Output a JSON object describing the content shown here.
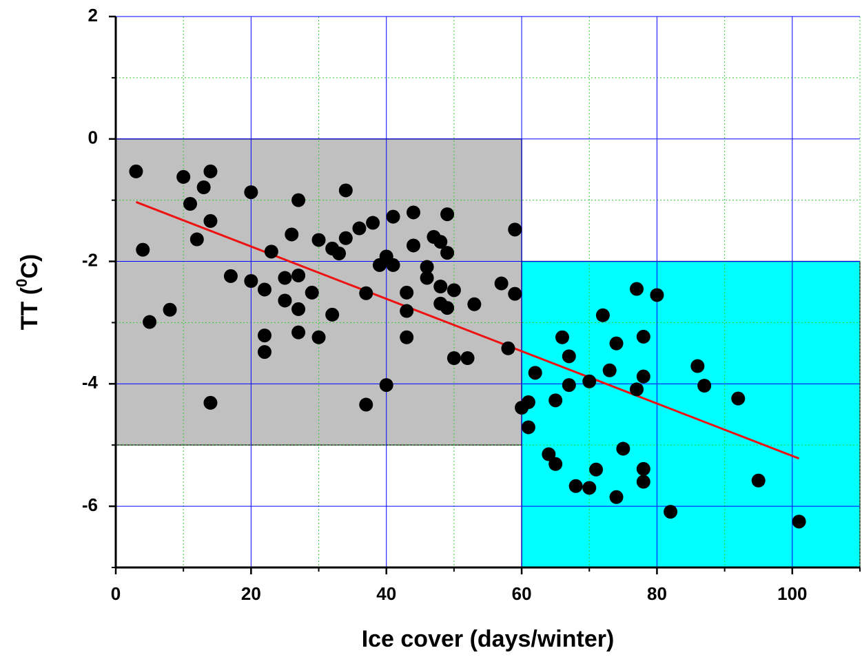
{
  "chart_data": {
    "type": "scatter",
    "xlabel": "Ice cover (days/winter)",
    "ylabel": [
      "TT (",
      "0",
      "C)"
    ],
    "xlim": [
      0,
      110
    ],
    "ylim": [
      -7,
      2
    ],
    "xticks": [
      0,
      20,
      40,
      60,
      80,
      100
    ],
    "yticks": [
      -6,
      -4,
      -2,
      0,
      2
    ],
    "xminor": [
      10,
      30,
      50,
      70,
      90,
      110
    ],
    "yminor": [
      -7,
      -5,
      -3,
      -1,
      1
    ],
    "grid": true,
    "grid_color": "#0000ff",
    "minor_grid_color": "#33cc33",
    "color": "#000000",
    "regions": [
      {
        "x": [
          0,
          60
        ],
        "y": [
          -5,
          0
        ],
        "color": "#c0c0c0"
      },
      {
        "x": [
          60,
          110
        ],
        "y": [
          -7,
          -2
        ],
        "color": "#00ffff"
      }
    ],
    "fit": {
      "x": [
        3,
        101
      ],
      "y": [
        -1.03,
        -5.22
      ],
      "color": "#ee1111"
    },
    "x": [
      3,
      4,
      5,
      8,
      10,
      11,
      12,
      13,
      14,
      14,
      14,
      17,
      20,
      20,
      22,
      22,
      22,
      23,
      25,
      25,
      26,
      27,
      27,
      27,
      27,
      29,
      30,
      30,
      32,
      32,
      33,
      34,
      34,
      36,
      37,
      37,
      38,
      39,
      40,
      40,
      41,
      41,
      43,
      43,
      43,
      44,
      44,
      46,
      46,
      47,
      48,
      48,
      48,
      49,
      49,
      49,
      50,
      50,
      52,
      53,
      57,
      58,
      59,
      59,
      60,
      61,
      61,
      62,
      64,
      65,
      65,
      66,
      67,
      67,
      68,
      70,
      70,
      71,
      72,
      73,
      74,
      74,
      75,
      77,
      77,
      78,
      78,
      78,
      78,
      80,
      82,
      86,
      87,
      92,
      95,
      101
    ],
    "values": [
      -0.53,
      -1.81,
      -2.99,
      -2.79,
      -0.62,
      -1.06,
      -1.64,
      -0.79,
      -0.53,
      -1.34,
      -4.31,
      -2.24,
      -0.87,
      -2.32,
      -2.46,
      -3.21,
      -3.48,
      -1.84,
      -2.27,
      -2.64,
      -1.56,
      -1.0,
      -2.23,
      -2.78,
      -3.16,
      -2.51,
      -1.65,
      -3.24,
      -1.79,
      -2.87,
      -1.87,
      -0.84,
      -1.62,
      -1.46,
      -2.52,
      -4.34,
      -1.37,
      -2.06,
      -1.92,
      -4.02,
      -1.27,
      -2.06,
      -2.51,
      -2.81,
      -3.24,
      -1.2,
      -1.74,
      -2.09,
      -2.27,
      -1.6,
      -1.68,
      -2.41,
      -2.69,
      -1.23,
      -1.86,
      -2.76,
      -2.47,
      -3.58,
      -3.58,
      -2.7,
      -2.36,
      -3.42,
      -1.48,
      -2.53,
      -4.39,
      -4.3,
      -4.71,
      -3.82,
      -5.15,
      -4.27,
      -5.31,
      -3.24,
      -3.55,
      -4.02,
      -5.67,
      -3.96,
      -5.7,
      -5.4,
      -2.88,
      -3.78,
      -3.34,
      -5.85,
      -5.06,
      -2.45,
      -4.09,
      -3.23,
      -3.88,
      -5.39,
      -5.6,
      -2.55,
      -6.09,
      -3.71,
      -4.03,
      -4.24,
      -5.58,
      -6.25
    ]
  }
}
